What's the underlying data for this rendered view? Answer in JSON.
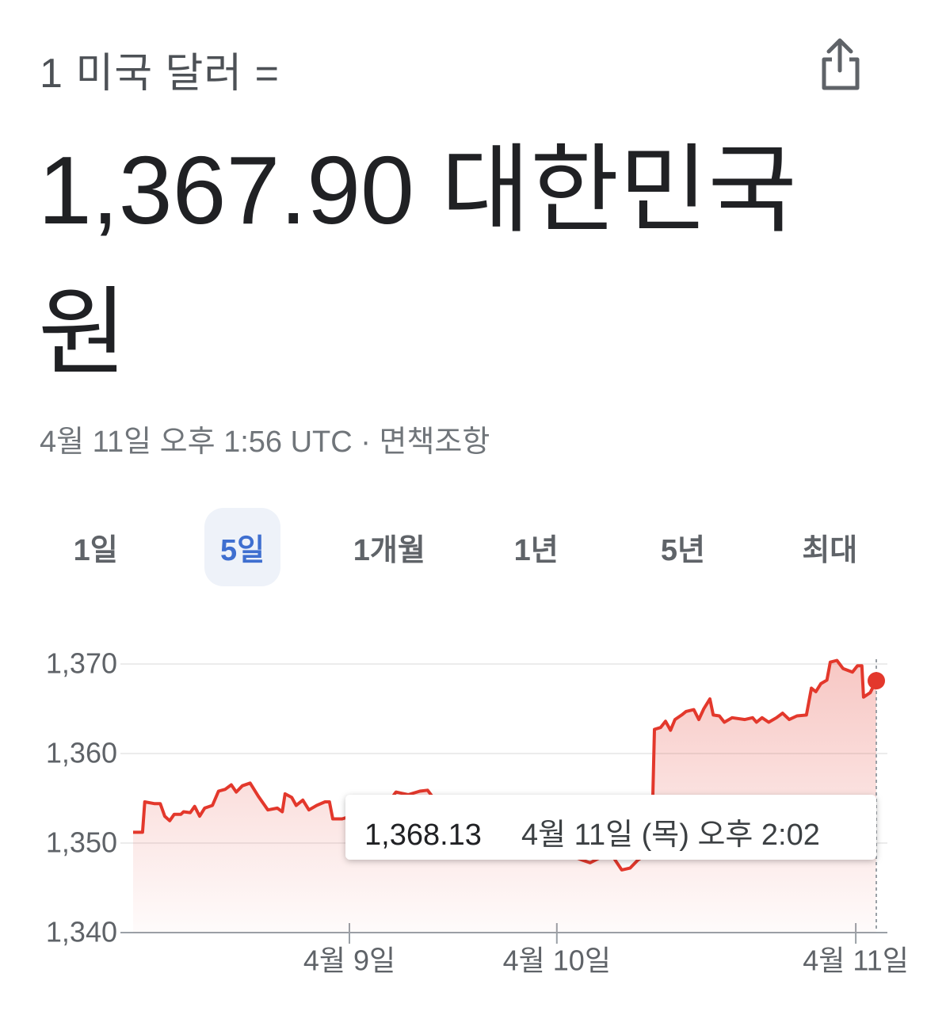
{
  "header": {
    "from": "1 미국 달러 =",
    "amount": "1,367.90 대한민국 원",
    "timestamp": "4월 11일 오후 1:56 UTC",
    "separator": "·",
    "disclaimer": "면책조항"
  },
  "tabs": [
    "1일",
    "5일",
    "1개월",
    "1년",
    "5년",
    "최대"
  ],
  "selected_tab": 1,
  "chart_data": {
    "type": "line",
    "color": "#e3382c",
    "x": [
      0,
      1.7,
      2.1,
      3.9,
      4.9,
      5.7,
      6.6,
      7.4,
      8.6,
      9.1,
      10.3,
      11.1,
      12,
      12.9,
      14.3,
      15.4,
      16.6,
      17.7,
      18.6,
      19.7,
      21.1,
      22.6,
      24.3,
      26,
      26.9,
      27.4,
      28.6,
      29.4,
      30.6,
      31.7,
      33.1,
      34.6,
      35.4,
      36,
      37.7,
      40.3,
      43.1,
      46,
      47.4,
      49.6,
      51.7,
      53.1,
      56,
      60.3,
      64.6,
      68.9,
      73.1,
      77.4,
      81,
      82.4,
      84.6,
      86.7,
      88.1,
      89.6,
      91,
      93.1,
      93.7,
      94,
      95.1,
      96,
      96.9,
      97.7,
      98.9,
      99.7,
      101.1,
      102,
      102.9,
      104,
      104.6,
      105.7,
      106.6,
      108,
      110.3,
      111.7,
      112.4,
      113.4,
      114.6,
      116,
      117.1,
      118.3,
      119.7,
      121.4,
      122.3,
      123.1,
      124,
      125.1,
      125.7,
      126.9,
      128,
      129.7,
      130.6,
      131.4,
      131.7,
      132.9,
      134
    ],
    "values": [
      1351.2,
      1351.2,
      1354.6,
      1354.4,
      1354.4,
      1353.0,
      1352.5,
      1353.2,
      1353.2,
      1353.5,
      1353.4,
      1354.1,
      1353.0,
      1353.9,
      1354.2,
      1355.8,
      1356.0,
      1356.5,
      1355.7,
      1356.4,
      1356.7,
      1355.2,
      1353.7,
      1353.9,
      1353.5,
      1355.5,
      1355.1,
      1354.2,
      1354.8,
      1353.7,
      1354.2,
      1354.6,
      1354.6,
      1352.7,
      1352.7,
      1353.2,
      1354.0,
      1354.5,
      1355.7,
      1355.4,
      1355.8,
      1355.9,
      1353.5,
      1352.0,
      1351.0,
      1350.5,
      1349.5,
      1349.0,
      1348.1,
      1347.8,
      1348.5,
      1348.3,
      1347.0,
      1347.2,
      1348.1,
      1349.0,
      1355.0,
      1362.7,
      1362.9,
      1363.6,
      1362.6,
      1363.8,
      1364.3,
      1364.7,
      1364.9,
      1363.8,
      1365.0,
      1366.1,
      1364.3,
      1364.2,
      1363.5,
      1364.0,
      1363.8,
      1364.0,
      1363.5,
      1364.0,
      1363.5,
      1364.0,
      1364.5,
      1363.8,
      1364.2,
      1364.3,
      1367.3,
      1366.9,
      1367.8,
      1368.2,
      1370.2,
      1370.4,
      1369.5,
      1369.1,
      1369.8,
      1369.8,
      1366.3,
      1366.8,
      1368.13
    ],
    "xlim": [
      0,
      136
    ],
    "xticks": [
      {
        "value": 39,
        "label": "4월 9일"
      },
      {
        "value": 76.4,
        "label": "4월 10일"
      },
      {
        "value": 130.3,
        "label": "4월 11일"
      }
    ],
    "ylim": [
      1340,
      1370
    ],
    "yticks": [
      {
        "value": 1370,
        "label": "1,370"
      },
      {
        "value": 1360,
        "label": "1,360"
      },
      {
        "value": 1350,
        "label": "1,350"
      },
      {
        "value": 1340,
        "label": "1,340"
      }
    ],
    "grid": true,
    "tooltip": {
      "x": 134,
      "value": 1368.13,
      "label": "1,368.13",
      "time": "4월 11일 (목) 오후 2:02"
    }
  }
}
